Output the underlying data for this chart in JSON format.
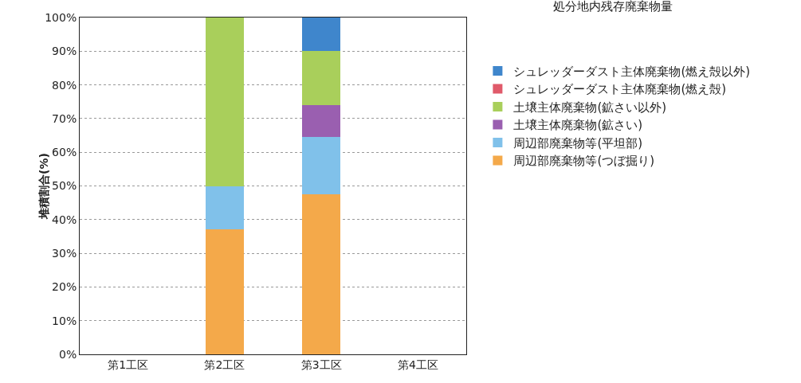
{
  "chart_data": {
    "type": "bar",
    "stacked": true,
    "ylabel": "堆積割合(%)",
    "categories": [
      "第1工区",
      "第2工区",
      "第3工区",
      "第4工区"
    ],
    "series": [
      {
        "name": "周辺部廃棄物等(つぼ掘り)",
        "color": "#f4a94a",
        "values": [
          null,
          37,
          47.5,
          null
        ]
      },
      {
        "name": "周辺部廃棄物等(平坦部)",
        "color": "#80c1ea",
        "values": [
          null,
          13,
          17,
          null
        ]
      },
      {
        "name": "土壌主体廃棄物(鉱さい)",
        "color": "#9a5fb0",
        "values": [
          null,
          0,
          9.5,
          null
        ]
      },
      {
        "name": "土壌主体廃棄物(鉱さい以外)",
        "color": "#a9cf5b",
        "values": [
          null,
          50,
          16,
          null
        ]
      },
      {
        "name": "シュレッダーダスト主体廃棄物(燃え殻)",
        "color": "#e05a6a",
        "values": [
          null,
          0,
          0,
          null
        ]
      },
      {
        "name": "シュレッダーダスト主体廃棄物(燃え殻以外)",
        "color": "#3f86cc",
        "values": [
          null,
          0,
          10,
          null
        ]
      }
    ],
    "ylim": [
      0,
      100
    ],
    "yticks": [
      {
        "value": 0,
        "label": "0%"
      },
      {
        "value": 10,
        "label": "10%"
      },
      {
        "value": 20,
        "label": "20%"
      },
      {
        "value": 30,
        "label": "30%"
      },
      {
        "value": 40,
        "label": "40%"
      },
      {
        "value": 50,
        "label": "50%"
      },
      {
        "value": 60,
        "label": "60%"
      },
      {
        "value": 70,
        "label": "70%"
      },
      {
        "value": 80,
        "label": "80%"
      },
      {
        "value": 90,
        "label": "90%"
      },
      {
        "value": 100,
        "label": "100%"
      }
    ],
    "grid": "y",
    "legend": "right",
    "annotations": [
      "処分地内残存廃棄物量"
    ]
  }
}
